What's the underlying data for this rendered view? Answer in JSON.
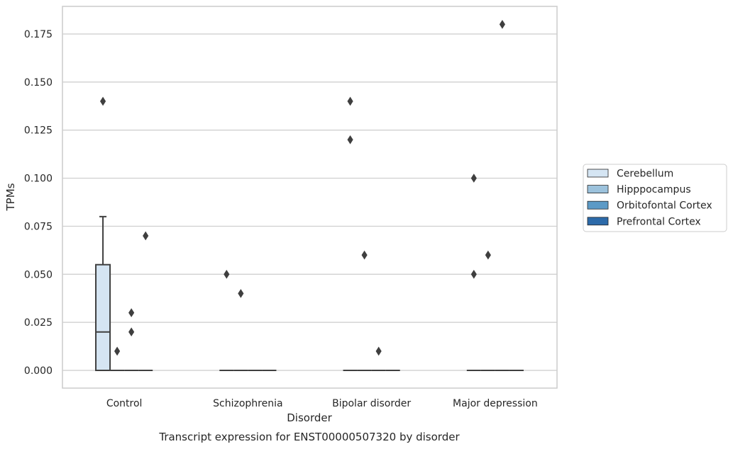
{
  "chart_data": {
    "type": "box",
    "title": "Transcript expression for ENST00000507320 by disorder",
    "xlabel": "Disorder",
    "ylabel": "TPMs",
    "categories": [
      "Control",
      "Schizophrenia",
      "Bipolar disorder",
      "Major depression"
    ],
    "ylim": [
      -0.009,
      0.193
    ],
    "yticks": [
      0.0,
      0.025,
      0.05,
      0.075,
      0.1,
      0.125,
      0.15,
      0.175
    ],
    "ytick_labels": [
      "0.000",
      "0.025",
      "0.050",
      "0.075",
      "0.100",
      "0.125",
      "0.150",
      "0.175"
    ],
    "grid": "y",
    "legend_position": "right",
    "series": [
      {
        "name": "Cerebellum",
        "color": "#d5e5f3",
        "boxes": [
          {
            "q1": 0.0,
            "median": 0.02,
            "q3": 0.055,
            "whisker_low": 0.0,
            "whisker_high": 0.08,
            "outliers": [
              0.14
            ]
          },
          {
            "q1": 0.0,
            "median": 0.0,
            "q3": 0.0,
            "whisker_low": 0.0,
            "whisker_high": 0.0,
            "outliers": [
              0.05
            ]
          },
          {
            "q1": 0.0,
            "median": 0.0,
            "q3": 0.0,
            "whisker_low": 0.0,
            "whisker_high": 0.0,
            "outliers": [
              0.12,
              0.14
            ]
          },
          {
            "q1": 0.0,
            "median": 0.0,
            "q3": 0.0,
            "whisker_low": 0.0,
            "whisker_high": 0.0,
            "outliers": [
              0.05,
              0.1
            ]
          }
        ]
      },
      {
        "name": "Hipppocampus",
        "color": "#9cc2dc",
        "boxes": [
          {
            "q1": 0.0,
            "median": 0.0,
            "q3": 0.0,
            "whisker_low": 0.0,
            "whisker_high": 0.0,
            "outliers": [
              0.01
            ]
          },
          {
            "q1": 0.0,
            "median": 0.0,
            "q3": 0.0,
            "whisker_low": 0.0,
            "whisker_high": 0.0,
            "outliers": [
              0.04
            ]
          },
          {
            "q1": 0.0,
            "median": 0.0,
            "q3": 0.0,
            "whisker_low": 0.0,
            "whisker_high": 0.0,
            "outliers": [
              0.06
            ]
          },
          {
            "q1": 0.0,
            "median": 0.0,
            "q3": 0.0,
            "whisker_low": 0.0,
            "whisker_high": 0.0,
            "outliers": [
              0.06
            ]
          }
        ]
      },
      {
        "name": "Orbitofontal Cortex",
        "color": "#5c9ac6",
        "boxes": [
          {
            "q1": 0.0,
            "median": 0.0,
            "q3": 0.0,
            "whisker_low": 0.0,
            "whisker_high": 0.0,
            "outliers": [
              0.02,
              0.03
            ]
          },
          {
            "q1": 0.0,
            "median": 0.0,
            "q3": 0.0,
            "whisker_low": 0.0,
            "whisker_high": 0.0,
            "outliers": []
          },
          {
            "q1": 0.0,
            "median": 0.0,
            "q3": 0.0,
            "whisker_low": 0.0,
            "whisker_high": 0.0,
            "outliers": [
              0.01
            ]
          },
          {
            "q1": 0.0,
            "median": 0.0,
            "q3": 0.0,
            "whisker_low": 0.0,
            "whisker_high": 0.0,
            "outliers": [
              0.18
            ]
          }
        ]
      },
      {
        "name": "Prefrontal Cortex",
        "color": "#2c6aa9",
        "boxes": [
          {
            "q1": 0.0,
            "median": 0.0,
            "q3": 0.0,
            "whisker_low": 0.0,
            "whisker_high": 0.0,
            "outliers": [
              0.07
            ]
          },
          {
            "q1": 0.0,
            "median": 0.0,
            "q3": 0.0,
            "whisker_low": 0.0,
            "whisker_high": 0.0,
            "outliers": []
          },
          {
            "q1": 0.0,
            "median": 0.0,
            "q3": 0.0,
            "whisker_low": 0.0,
            "whisker_high": 0.0,
            "outliers": []
          },
          {
            "q1": 0.0,
            "median": 0.0,
            "q3": 0.0,
            "whisker_low": 0.0,
            "whisker_high": 0.0,
            "outliers": []
          }
        ]
      }
    ]
  }
}
